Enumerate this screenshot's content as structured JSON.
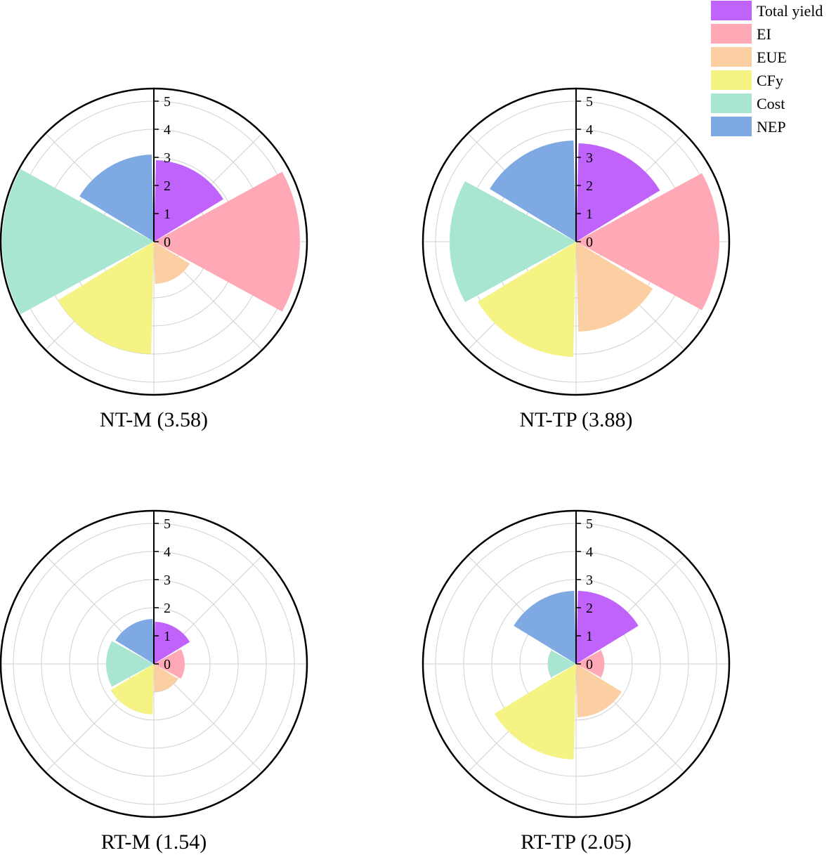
{
  "chart_data": [
    {
      "type": "rose",
      "title": "NT-M (3.58)",
      "categories": [
        "Total yield",
        "EI",
        "EUE",
        "CFy",
        "Cost",
        "NEP"
      ],
      "values": [
        2.9,
        5.2,
        1.5,
        4.0,
        5.4,
        3.1
      ],
      "rlim": [
        0,
        5.5
      ],
      "rticks": [
        "0",
        "1",
        "2",
        "3",
        "4",
        "5"
      ],
      "grid": true
    },
    {
      "type": "rose",
      "title": "NT-TP (3.88)",
      "categories": [
        "Total yield",
        "EI",
        "EUE",
        "CFy",
        "Cost",
        "NEP"
      ],
      "values": [
        3.5,
        5.1,
        3.2,
        4.1,
        4.5,
        3.6
      ],
      "rlim": [
        0,
        5.5
      ],
      "rticks": [
        "0",
        "1",
        "2",
        "3",
        "4",
        "5"
      ],
      "grid": true
    },
    {
      "type": "rose",
      "title": "RT-M (1.54)",
      "categories": [
        "Total yield",
        "EI",
        "EUE",
        "CFy",
        "Cost",
        "NEP"
      ],
      "values": [
        1.5,
        1.1,
        1.0,
        1.8,
        1.7,
        1.6
      ],
      "rlim": [
        0,
        5.5
      ],
      "rticks": [
        "0",
        "1",
        "2",
        "3",
        "4",
        "5"
      ],
      "grid": true
    },
    {
      "type": "rose",
      "title": "RT-TP (2.05)",
      "categories": [
        "Total yield",
        "EI",
        "EUE",
        "CFy",
        "Cost",
        "NEP"
      ],
      "values": [
        2.6,
        1.0,
        1.9,
        3.4,
        1.0,
        2.6
      ],
      "rlim": [
        0,
        5.5
      ],
      "rticks": [
        "0",
        "1",
        "2",
        "3",
        "4",
        "5"
      ],
      "grid": true
    }
  ],
  "legend": {
    "placement": "top-right",
    "items": [
      {
        "label": "Total yield",
        "color": "#bf63fb"
      },
      {
        "label": "EI",
        "color": "#fea9b5"
      },
      {
        "label": "EUE",
        "color": "#fccfa2"
      },
      {
        "label": "CFy",
        "color": "#f4f384"
      },
      {
        "label": "Cost",
        "color": "#a9e6d2"
      },
      {
        "label": "NEP",
        "color": "#7fa9e2"
      }
    ]
  }
}
